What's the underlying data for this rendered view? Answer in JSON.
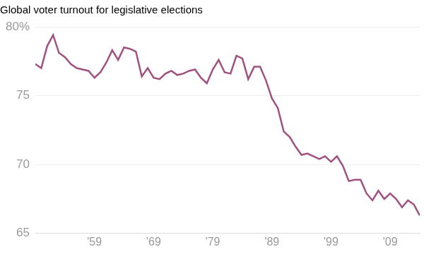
{
  "chart_data": {
    "type": "line",
    "title": "Global voter turnout for legislative elections",
    "x": [
      1949,
      1950,
      1951,
      1952,
      1953,
      1954,
      1955,
      1956,
      1957,
      1958,
      1959,
      1960,
      1961,
      1962,
      1963,
      1964,
      1965,
      1966,
      1967,
      1968,
      1969,
      1970,
      1971,
      1972,
      1973,
      1974,
      1975,
      1976,
      1977,
      1978,
      1979,
      1980,
      1981,
      1982,
      1983,
      1984,
      1985,
      1986,
      1987,
      1988,
      1989,
      1990,
      1991,
      1992,
      1993,
      1994,
      1995,
      1996,
      1997,
      1998,
      1999,
      2000,
      2001,
      2002,
      2003,
      2004,
      2005,
      2006,
      2007,
      2008,
      2009,
      2010,
      2011,
      2012,
      2013,
      2014
    ],
    "values": [
      77.3,
      77.0,
      78.6,
      79.4,
      78.1,
      77.8,
      77.3,
      77.0,
      76.9,
      76.8,
      76.3,
      76.7,
      77.4,
      78.3,
      77.6,
      78.5,
      78.4,
      78.2,
      76.4,
      77.0,
      76.3,
      76.2,
      76.6,
      76.8,
      76.5,
      76.6,
      76.8,
      76.9,
      76.3,
      75.9,
      76.9,
      77.6,
      76.7,
      76.6,
      77.9,
      77.7,
      76.2,
      77.1,
      77.1,
      76.1,
      74.8,
      74.1,
      72.4,
      72.0,
      71.3,
      70.7,
      70.8,
      70.6,
      70.4,
      70.6,
      70.2,
      70.6,
      69.9,
      68.8,
      68.9,
      68.9,
      67.9,
      67.4,
      68.1,
      67.5,
      67.9,
      67.5,
      66.9,
      67.4,
      67.1,
      66.3
    ],
    "color": "#a0517f",
    "xlim": [
      1949,
      2014
    ],
    "ylim": [
      65,
      80
    ],
    "xticks": [
      {
        "value": 1959,
        "label": "'59"
      },
      {
        "value": 1969,
        "label": "'69"
      },
      {
        "value": 1979,
        "label": "'79"
      },
      {
        "value": 1989,
        "label": "'89"
      },
      {
        "value": 1999,
        "label": "'99"
      },
      {
        "value": 2009,
        "label": "'09"
      }
    ],
    "yticks": [
      65,
      70,
      75,
      {
        "value": 80,
        "label": "80%"
      }
    ],
    "grid": true
  }
}
